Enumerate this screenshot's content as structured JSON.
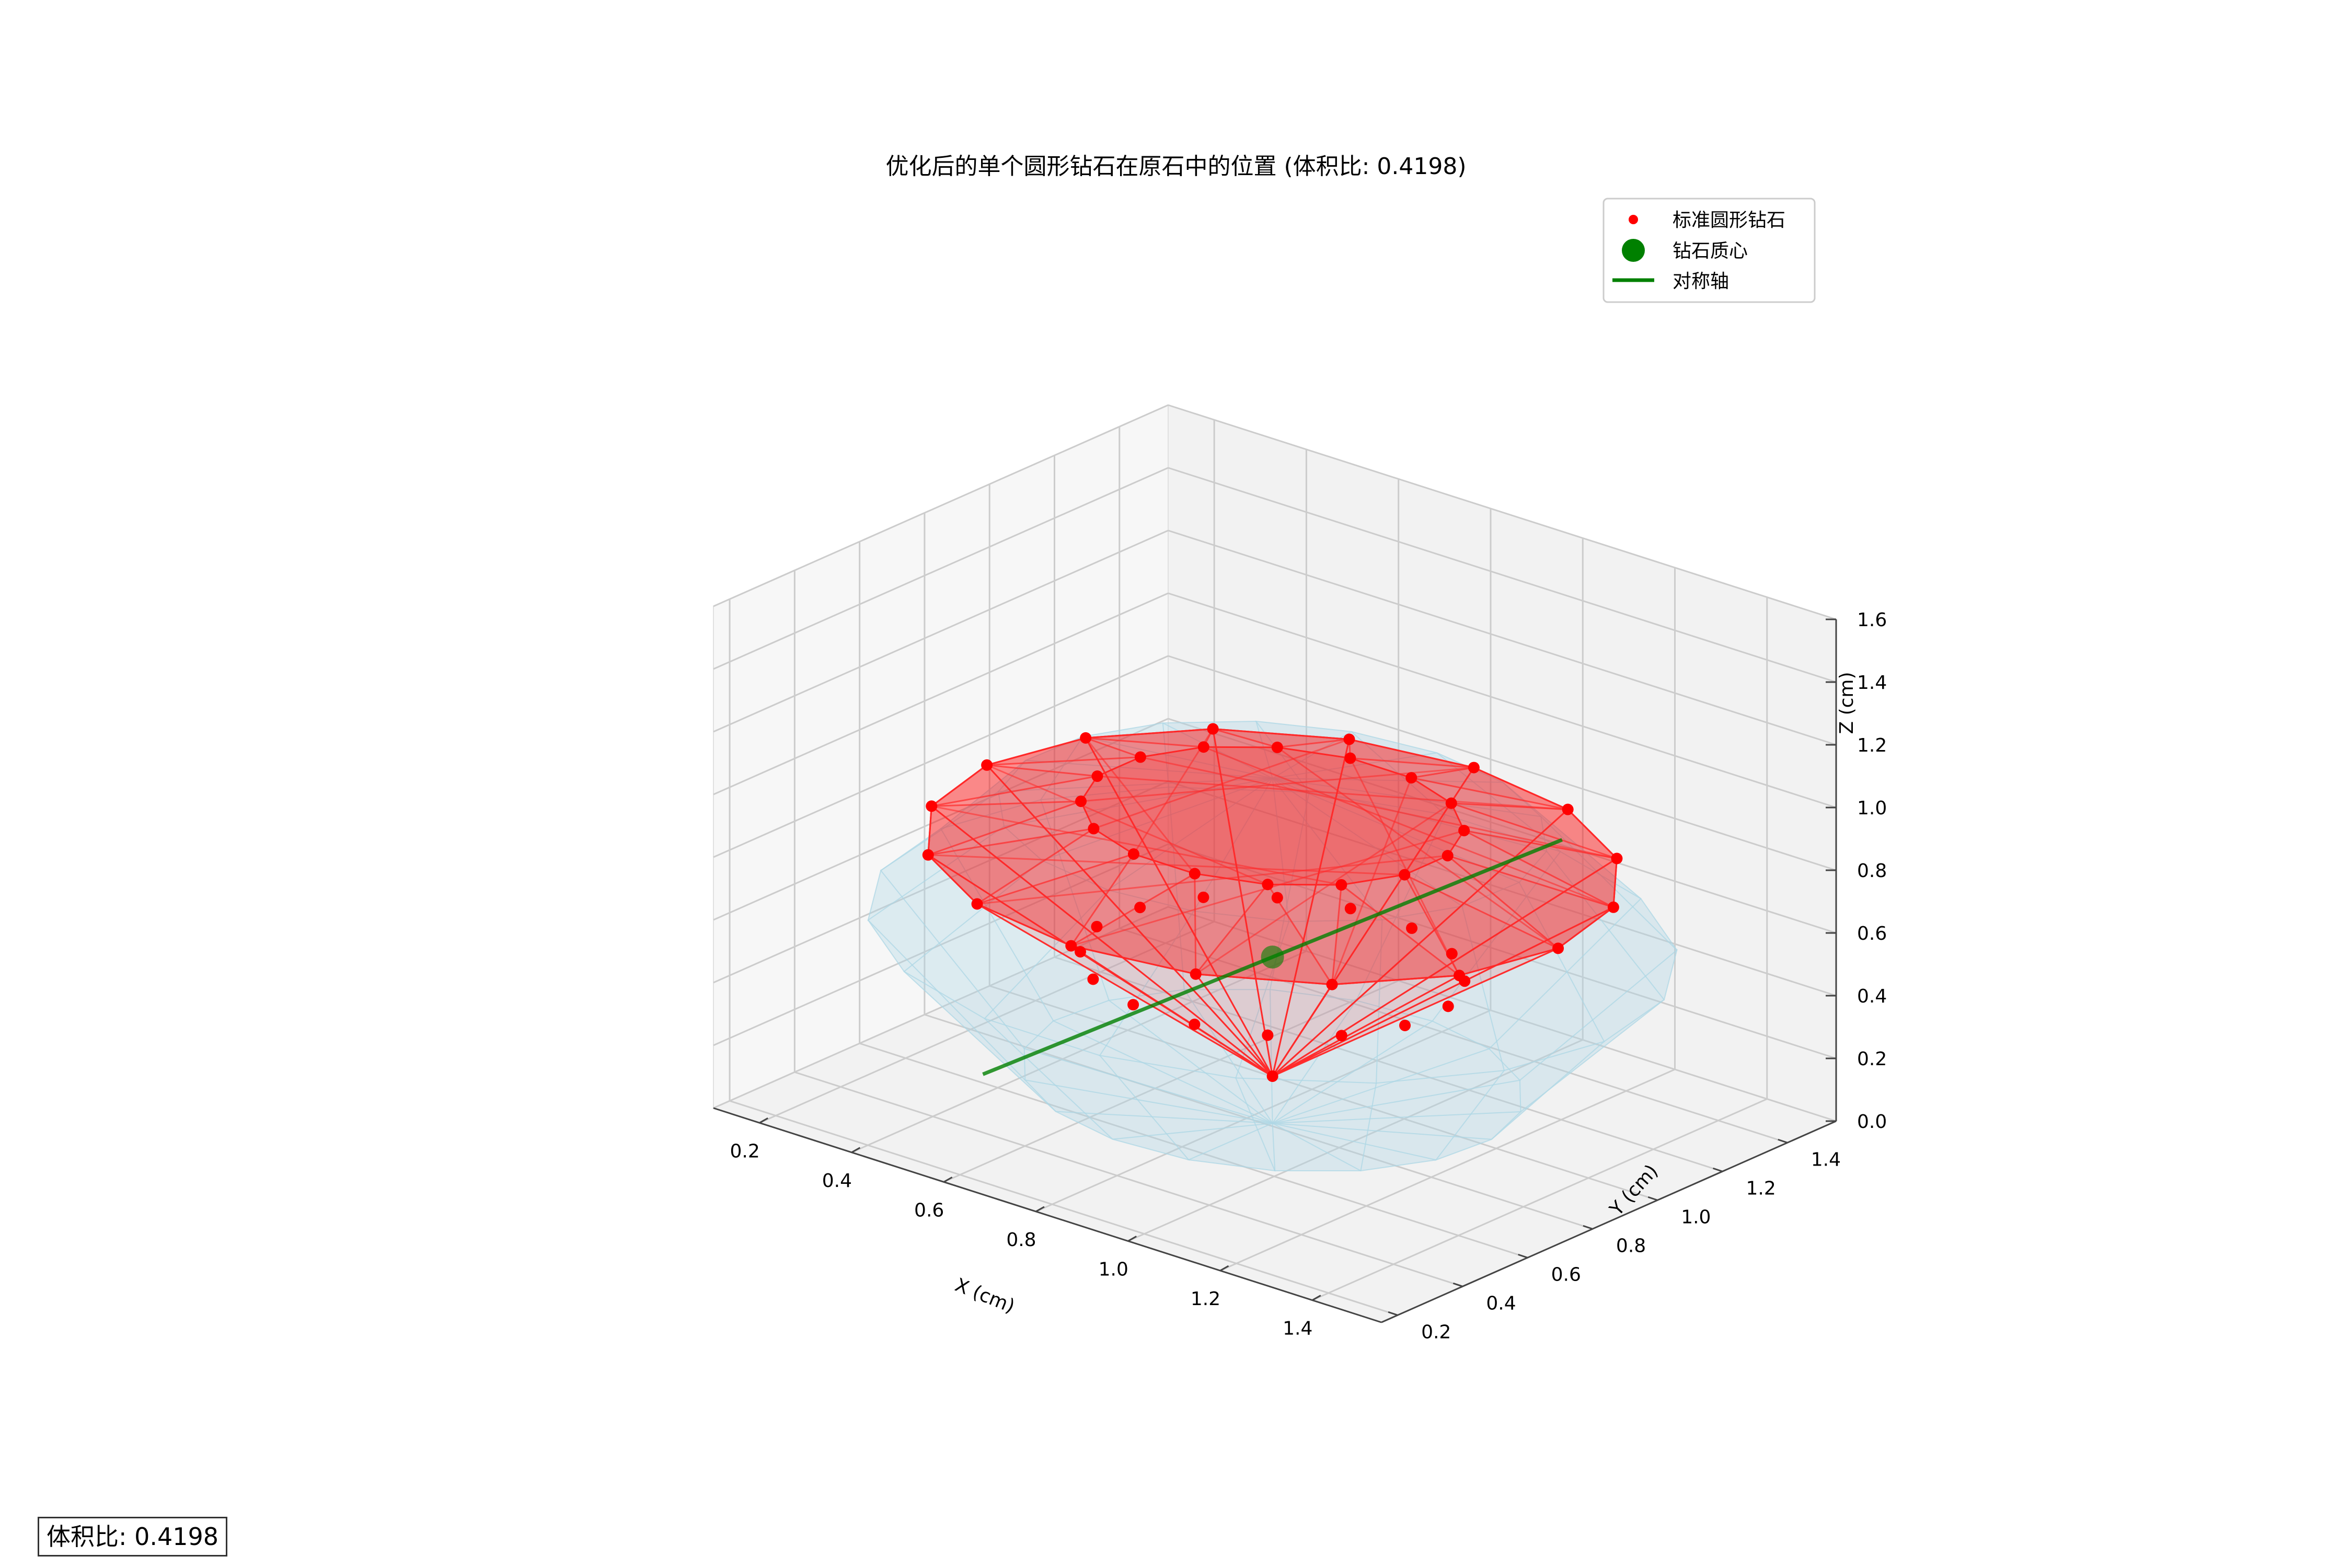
{
  "chart_data": {
    "type": "scatter",
    "subtype": "3d",
    "title": "优化后的单个圆形钻石在原石中的位置 (体积比: 0.4198)",
    "xlabel": "X (cm)",
    "ylabel": "Y (cm)",
    "zlabel": "Z (cm)",
    "xlim": [
      0.1,
      1.55
    ],
    "ylim": [
      0.15,
      1.55
    ],
    "zlim": [
      0,
      1.6
    ],
    "xticks": [
      "0.2",
      "0.4",
      "0.6",
      "0.8",
      "1.0",
      "1.2",
      "1.4"
    ],
    "yticks": [
      "0.2",
      "0.4",
      "0.6",
      "0.8",
      "1.0",
      "1.2",
      "1.4"
    ],
    "zticks": [
      "0.0",
      "0.2",
      "0.4",
      "0.6",
      "0.8",
      "1.0",
      "1.2",
      "1.4",
      "1.6"
    ],
    "grid": true,
    "legend_position": "top-right",
    "legend": [
      {
        "label": "标准圆形钻石",
        "marker": "dot",
        "color": "#ff0000"
      },
      {
        "label": "钻石质心",
        "marker": "dot-large",
        "color": "#008000"
      },
      {
        "label": "对称轴",
        "marker": "line",
        "color": "#008000"
      }
    ],
    "diamond_center": {
      "x": 0.82,
      "y": 0.85,
      "z": 0.5
    },
    "diamond_girdle_radius": 0.62,
    "diamond_girdle_z": 0.82,
    "diamond_culet_z": 0.12,
    "diamond_table_radius": 0.34,
    "diamond_table_z": 0.95,
    "symmetry_axis": {
      "from": {
        "x": 0.82,
        "y": 0.85,
        "z": 0.5
      },
      "direction": [
        0.6,
        0.5,
        0.62
      ],
      "half_length": 0.66
    },
    "rough_stone": {
      "center": {
        "x": 0.82,
        "y": 0.85,
        "z": 0.52
      },
      "radius": 0.72,
      "half_height": 0.55
    },
    "volume_ratio_label": "体积比: 0.4198",
    "colors": {
      "diamond_fill": "#ff0000",
      "diamond_edges": "#ff2a2a",
      "rough_fill": "#add8e6",
      "center": "#008000",
      "axis_line": "#008000",
      "pane": "#f2f2f2",
      "grid": "#cccccc"
    }
  }
}
